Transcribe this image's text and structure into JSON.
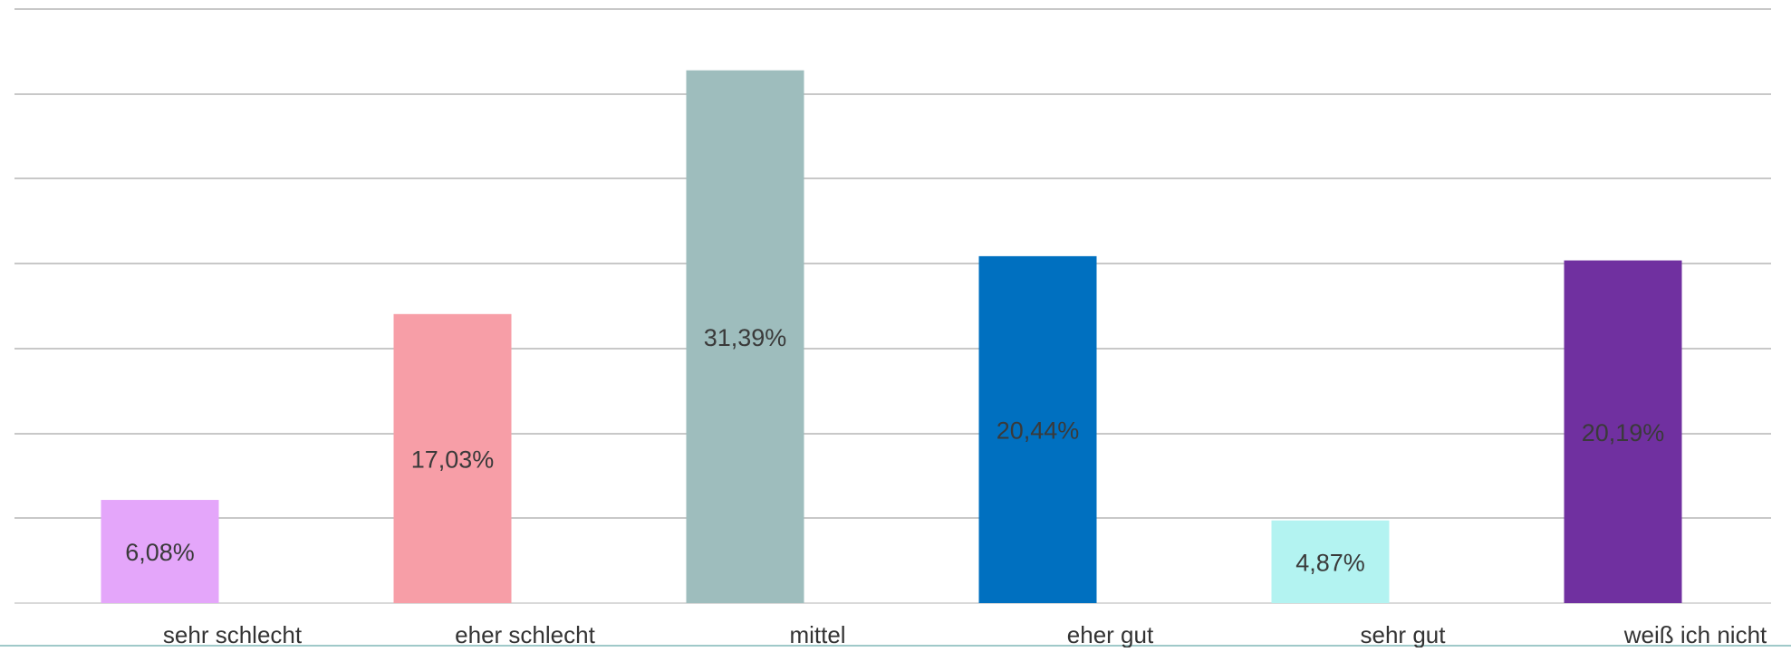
{
  "chart_data": {
    "type": "bar",
    "categories": [
      "sehr schlecht",
      "eher schlecht",
      "mittel",
      "eher gut",
      "sehr gut",
      "weiß ich nicht"
    ],
    "values": [
      6.08,
      17.03,
      31.39,
      20.44,
      4.87,
      20.19
    ],
    "data_labels": [
      "6,08%",
      "17,03%",
      "31,39%",
      "20,44%",
      "4,87%",
      "20,19%"
    ],
    "colors": [
      "#e4a6fa",
      "#f79ea7",
      "#9ebdbd",
      "#0070c0",
      "#b3f3f1",
      "#7030a0"
    ],
    "ylim": [
      0,
      35
    ],
    "ytick_step": 5,
    "grid": true,
    "legend": "none",
    "title": "",
    "xlabel": "",
    "ylabel": ""
  }
}
